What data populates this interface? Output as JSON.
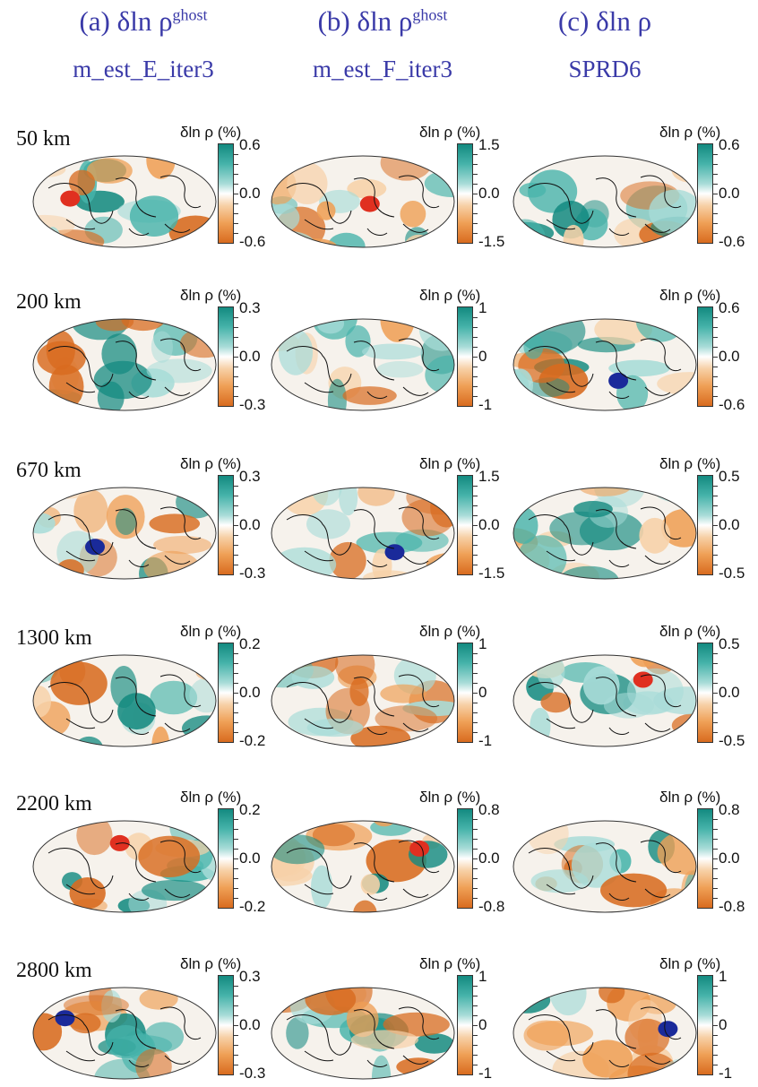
{
  "columns": [
    {
      "title": "(a) δln ρ",
      "sup": "ghost",
      "subtitle": "m_est_E_iter3"
    },
    {
      "title": "(b) δln ρ",
      "sup": "ghost",
      "subtitle": "m_est_F_iter3"
    },
    {
      "title": "(c) δln ρ",
      "sup": "",
      "subtitle": "SPRD6"
    }
  ],
  "colorbar_title": "δln ρ (%)",
  "rows": [
    {
      "depth": "50 km",
      "scales": [
        [
          "0.6",
          "0.0",
          "-0.6"
        ],
        [
          "1.5",
          "0.0",
          "-1.5"
        ],
        [
          "0.6",
          "0.0",
          "-0.6"
        ]
      ]
    },
    {
      "depth": "200 km",
      "scales": [
        [
          "0.3",
          "0.0",
          "-0.3"
        ],
        [
          "1",
          "0",
          "-1"
        ],
        [
          "0.6",
          "0.0",
          "-0.6"
        ]
      ]
    },
    {
      "depth": "670 km",
      "scales": [
        [
          "0.3",
          "0.0",
          "-0.3"
        ],
        [
          "1.5",
          "0.0",
          "-1.5"
        ],
        [
          "0.5",
          "0.0",
          "-0.5"
        ]
      ]
    },
    {
      "depth": "1300 km",
      "scales": [
        [
          "0.2",
          "0.0",
          "-0.2"
        ],
        [
          "1",
          "0",
          "-1"
        ],
        [
          "0.5",
          "0.0",
          "-0.5"
        ]
      ]
    },
    {
      "depth": "2200 km",
      "scales": [
        [
          "0.2",
          "0.0",
          "-0.2"
        ],
        [
          "0.8",
          "0.0",
          "-0.8"
        ],
        [
          "0.8",
          "0.0",
          "-0.8"
        ]
      ]
    },
    {
      "depth": "2800 km",
      "scales": [
        [
          "0.3",
          "0.0",
          "-0.3"
        ],
        [
          "1",
          "0",
          "-1"
        ],
        [
          "1",
          "0",
          "-1"
        ]
      ]
    }
  ],
  "colors": {
    "title": "#3a3aa8",
    "positive": "#138a80",
    "negative": "#d86b1f",
    "strong_positive": "#1a2a9a",
    "strong_negative": "#e03020"
  }
}
